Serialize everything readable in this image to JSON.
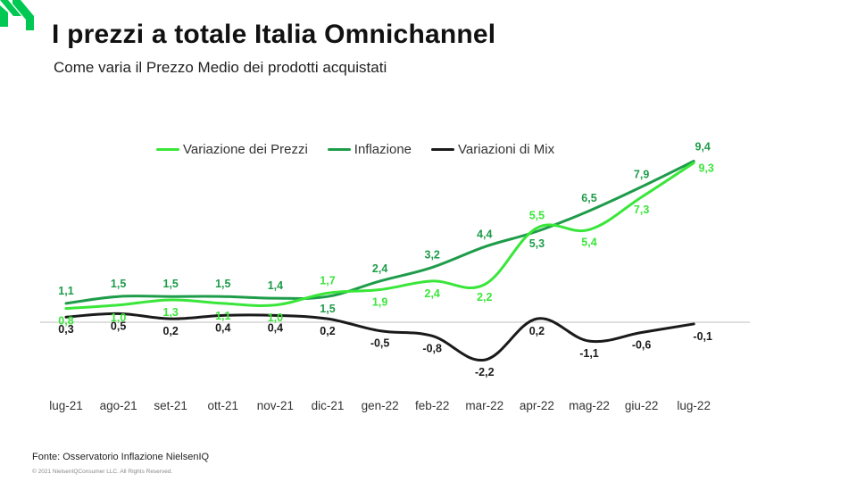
{
  "header": {
    "title": "I prezzi a totale Italia Omnichannel",
    "subtitle": "Come varia il Prezzo Medio dei prodotti acquistati"
  },
  "footer": {
    "source": "Fonte: Osservatorio Inflazione NielsenIQ",
    "copyright": "© 2021 NielsenIQConsumer LLC. All Rights Reserved."
  },
  "colors": {
    "logo": "#00c853",
    "variazione_prezzi": "#39e639",
    "inflazione": "#1e9c4a",
    "variazioni_mix": "#1a1a1a"
  },
  "chart_data": {
    "type": "line",
    "categories": [
      "lug-21",
      "ago-21",
      "set-21",
      "ott-21",
      "nov-21",
      "dic-21",
      "gen-22",
      "feb-22",
      "mar-22",
      "apr-22",
      "mag-22",
      "giu-22",
      "lug-22"
    ],
    "series": [
      {
        "name": "Variazione dei Prezzi",
        "color": "#39e639",
        "values": [
          0.8,
          1.0,
          1.3,
          1.1,
          1.0,
          1.7,
          1.9,
          2.4,
          2.2,
          5.5,
          5.4,
          7.3,
          9.3
        ],
        "labels": [
          "0,8",
          "1,0",
          "1,3",
          "1,1",
          "1,0",
          "1,7",
          "1,9",
          "2,4",
          "2,2",
          "5,5",
          "5,4",
          "7,3",
          "9,3"
        ]
      },
      {
        "name": "Inflazione",
        "color": "#1e9c4a",
        "values": [
          1.1,
          1.5,
          1.5,
          1.5,
          1.4,
          1.5,
          2.4,
          3.2,
          4.4,
          5.3,
          6.5,
          7.9,
          9.4
        ],
        "labels": [
          "1,1",
          "1,5",
          "1,5",
          "1,5",
          "1,4",
          "1,5",
          "2,4",
          "3,2",
          "4,4",
          "5,3",
          "6,5",
          "7,9",
          "9,4"
        ]
      },
      {
        "name": "Variazioni di Mix",
        "color": "#1a1a1a",
        "values": [
          0.3,
          0.5,
          0.2,
          0.4,
          0.4,
          0.2,
          -0.5,
          -0.8,
          -2.2,
          0.2,
          -1.1,
          -0.6,
          -0.1
        ],
        "labels": [
          "0,3",
          "0,5",
          "0,2",
          "0,4",
          "0,4",
          "0,2",
          "-0,5",
          "-0,8",
          "-2,2",
          "0,2",
          "-1,1",
          "-0,6",
          "-0,1"
        ]
      }
    ],
    "xlabel": "",
    "ylabel": "",
    "ylim": [
      -2.5,
      10
    ],
    "grid": false,
    "legend": "top-center"
  }
}
